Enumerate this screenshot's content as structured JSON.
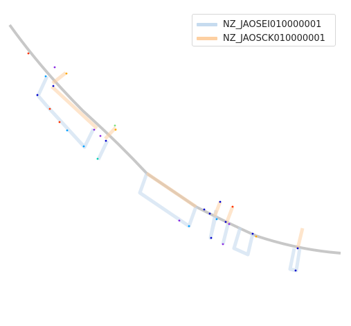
{
  "legend": {
    "items": [
      {
        "label": "NZ_JAOSEI010000001",
        "color": "#c6dbef"
      },
      {
        "label": "NZ_JAOSCK010000001",
        "color": "#fdd0a2"
      }
    ]
  },
  "colors": {
    "backbone": "#c8c8c8",
    "marker_palette": [
      "#0000cc",
      "#00a0ff",
      "#00d0b0",
      "#ff3300",
      "#ffaa00",
      "#7fe07f",
      "#8a2be2"
    ]
  }
}
